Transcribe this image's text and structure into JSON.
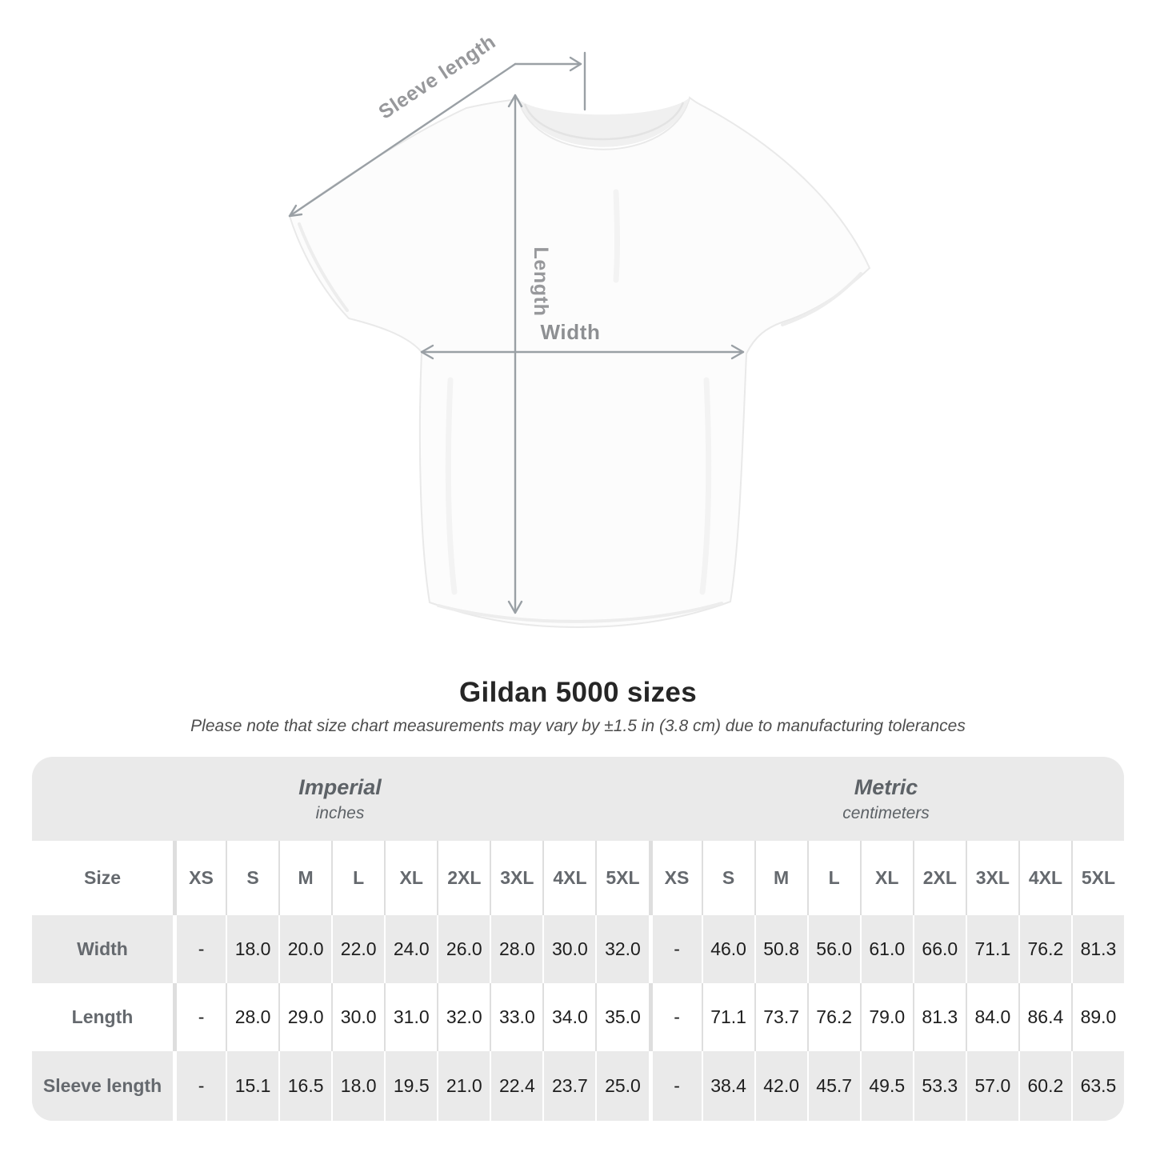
{
  "shirt": {
    "sleeve_length_label": "Sleeve length",
    "length_label": "Length",
    "width_label": "Width"
  },
  "title": "Gildan 5000 sizes",
  "note": "Please note that size chart measurements may vary by ±1.5 in (3.8 cm) due to manufacturing tolerances",
  "table": {
    "size_header": "Size",
    "sizes": [
      "XS",
      "S",
      "M",
      "L",
      "XL",
      "2XL",
      "3XL",
      "4XL",
      "5XL"
    ],
    "sections": [
      {
        "name": "Imperial",
        "unit": "inches"
      },
      {
        "name": "Metric",
        "unit": "centimeters"
      }
    ],
    "rows": [
      {
        "label": "Width",
        "imperial": [
          "-",
          "18.0",
          "20.0",
          "22.0",
          "24.0",
          "26.0",
          "28.0",
          "30.0",
          "32.0"
        ],
        "metric": [
          "-",
          "46.0",
          "50.8",
          "56.0",
          "61.0",
          "66.0",
          "71.1",
          "76.2",
          "81.3"
        ]
      },
      {
        "label": "Length",
        "imperial": [
          "-",
          "28.0",
          "29.0",
          "30.0",
          "31.0",
          "32.0",
          "33.0",
          "34.0",
          "35.0"
        ],
        "metric": [
          "-",
          "71.1",
          "73.7",
          "76.2",
          "79.0",
          "81.3",
          "84.0",
          "86.4",
          "89.0"
        ]
      },
      {
        "label": "Sleeve length",
        "imperial": [
          "-",
          "15.1",
          "16.5",
          "18.0",
          "19.5",
          "21.0",
          "22.4",
          "23.7",
          "25.0"
        ],
        "metric": [
          "-",
          "38.4",
          "42.0",
          "45.7",
          "49.5",
          "53.3",
          "57.0",
          "60.2",
          "63.5"
        ]
      }
    ]
  },
  "chart_data": {
    "type": "table",
    "title": "Gildan 5000 sizes",
    "note": "Please note that size chart measurements may vary by ±1.5 in (3.8 cm) due to manufacturing tolerances",
    "columns": [
      "XS",
      "S",
      "M",
      "L",
      "XL",
      "2XL",
      "3XL",
      "4XL",
      "5XL"
    ],
    "sections": [
      {
        "name": "Imperial",
        "unit": "inches",
        "rows": [
          {
            "label": "Width",
            "values": [
              null,
              18.0,
              20.0,
              22.0,
              24.0,
              26.0,
              28.0,
              30.0,
              32.0
            ]
          },
          {
            "label": "Length",
            "values": [
              null,
              28.0,
              29.0,
              30.0,
              31.0,
              32.0,
              33.0,
              34.0,
              35.0
            ]
          },
          {
            "label": "Sleeve length",
            "values": [
              null,
              15.1,
              16.5,
              18.0,
              19.5,
              21.0,
              22.4,
              23.7,
              25.0
            ]
          }
        ]
      },
      {
        "name": "Metric",
        "unit": "centimeters",
        "rows": [
          {
            "label": "Width",
            "values": [
              null,
              46.0,
              50.8,
              56.0,
              61.0,
              66.0,
              71.1,
              76.2,
              81.3
            ]
          },
          {
            "label": "Length",
            "values": [
              null,
              71.1,
              73.7,
              76.2,
              79.0,
              81.3,
              84.0,
              86.4,
              89.0
            ]
          },
          {
            "label": "Sleeve length",
            "values": [
              null,
              38.4,
              42.0,
              45.7,
              49.5,
              53.3,
              57.0,
              60.2,
              63.5
            ]
          }
        ]
      }
    ]
  },
  "colors": {
    "table_gray": "#eaeaea",
    "divider_on_white": "#dedede",
    "divider_on_gray": "#ffffff",
    "header_text": "#65696e",
    "value_text": "#1e1e1e",
    "annotation_gray": "#9aa0a5",
    "title_text": "#262626"
  }
}
